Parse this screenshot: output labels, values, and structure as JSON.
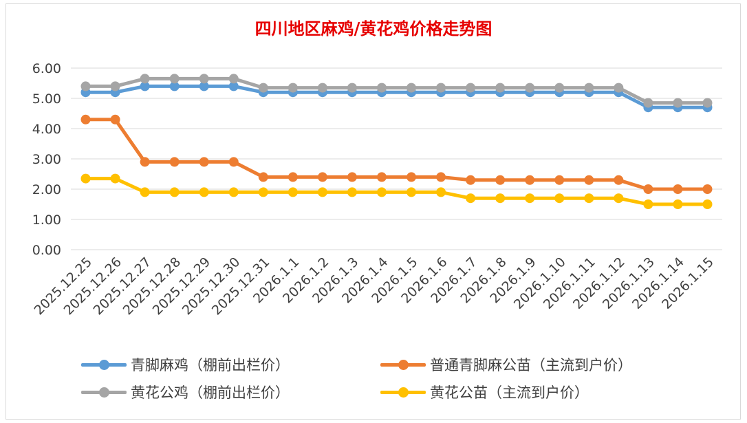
{
  "chart_data": {
    "type": "line",
    "title": "四川地区麻鸡/黄花鸡价格走势图",
    "xlabel": "",
    "ylabel": "",
    "ylim": [
      0,
      6
    ],
    "yticks": [
      "0.00",
      "1.00",
      "2.00",
      "3.00",
      "4.00",
      "5.00",
      "6.00"
    ],
    "grid": true,
    "legend_position": "bottom",
    "categories": [
      "2025.12.25",
      "2025.12.26",
      "2025.12.27",
      "2025.12.28",
      "2025.12.29",
      "2025.12.30",
      "2025.12.31",
      "2026.1.1",
      "2026.1.2",
      "2026.1.3",
      "2026.1.4",
      "2026.1.5",
      "2026.1.6",
      "2026.1.7",
      "2026.1.8",
      "2026.1.9",
      "2026.1.10",
      "2026.1.11",
      "2026.1.12",
      "2026.1.13",
      "2026.1.14",
      "2026.1.15"
    ],
    "series": [
      {
        "name": "青脚麻鸡（棚前出栏价）",
        "color": "#5b9bd5",
        "values": [
          5.2,
          5.2,
          5.4,
          5.4,
          5.4,
          5.4,
          5.2,
          5.2,
          5.2,
          5.2,
          5.2,
          5.2,
          5.2,
          5.2,
          5.2,
          5.2,
          5.2,
          5.2,
          5.2,
          4.7,
          4.7,
          4.7
        ]
      },
      {
        "name": "普通青脚麻公苗（主流到户价）",
        "color": "#ed7d31",
        "values": [
          4.3,
          4.3,
          2.9,
          2.9,
          2.9,
          2.9,
          2.4,
          2.4,
          2.4,
          2.4,
          2.4,
          2.4,
          2.4,
          2.3,
          2.3,
          2.3,
          2.3,
          2.3,
          2.3,
          2.0,
          2.0,
          2.0
        ]
      },
      {
        "name": "黄花公鸡（棚前出栏价）",
        "color": "#a5a5a5",
        "values": [
          5.4,
          5.4,
          5.65,
          5.65,
          5.65,
          5.65,
          5.35,
          5.35,
          5.35,
          5.35,
          5.35,
          5.35,
          5.35,
          5.35,
          5.35,
          5.35,
          5.35,
          5.35,
          5.35,
          4.85,
          4.85,
          4.85
        ]
      },
      {
        "name": "黄花公苗（主流到户价）",
        "color": "#ffc000",
        "values": [
          2.35,
          2.35,
          1.9,
          1.9,
          1.9,
          1.9,
          1.9,
          1.9,
          1.9,
          1.9,
          1.9,
          1.9,
          1.9,
          1.7,
          1.7,
          1.7,
          1.7,
          1.7,
          1.7,
          1.5,
          1.5,
          1.5
        ]
      }
    ],
    "draw_order": [
      0,
      1,
      3,
      2
    ]
  }
}
